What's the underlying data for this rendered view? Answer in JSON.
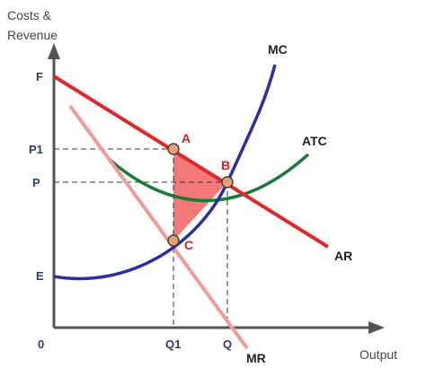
{
  "axes": {
    "y_label_line1": "Costs &",
    "y_label_line2": "Revenue",
    "x_label": "Output",
    "origin": "0"
  },
  "y_levels": {
    "F": "F",
    "P1": "P1",
    "P": "P",
    "E": "E"
  },
  "x_levels": {
    "Q1": "Q1",
    "Q": "Q"
  },
  "curves": {
    "MC": "MC",
    "ATC": "ATC",
    "AR": "AR",
    "MR": "MR"
  },
  "points": {
    "A": "A",
    "B": "B",
    "C": "C"
  }
}
